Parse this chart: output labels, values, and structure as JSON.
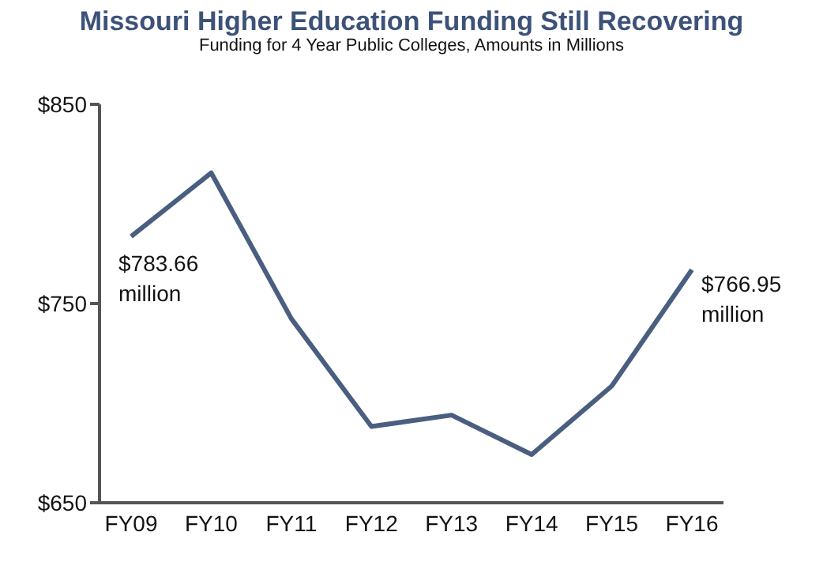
{
  "chart_data": {
    "type": "line",
    "title": "Missouri Higher Education Funding Still Recovering",
    "subtitle": "Funding for 4 Year Public Colleges, Amounts in Millions",
    "categories": [
      "FY09",
      "FY10",
      "FY11",
      "FY12",
      "FY13",
      "FY14",
      "FY15",
      "FY16"
    ],
    "series": [
      {
        "color": "#4a5e80",
        "values": [
          783.66,
          815.6,
          742.4,
          688.3,
          694,
          674.2,
          708.6,
          766.95
        ],
        "value_labels": [
          "$783.66 million",
          null,
          null,
          null,
          null,
          null,
          null,
          "$766.95 million"
        ]
      }
    ],
    "ylim": [
      650,
      850
    ],
    "yticks": [
      {
        "value": 650,
        "label": "$650"
      },
      {
        "value": 750,
        "label": "$750"
      },
      {
        "value": 850,
        "label": "$850"
      }
    ],
    "grid": false,
    "marker": "none",
    "line_style": "solid"
  }
}
